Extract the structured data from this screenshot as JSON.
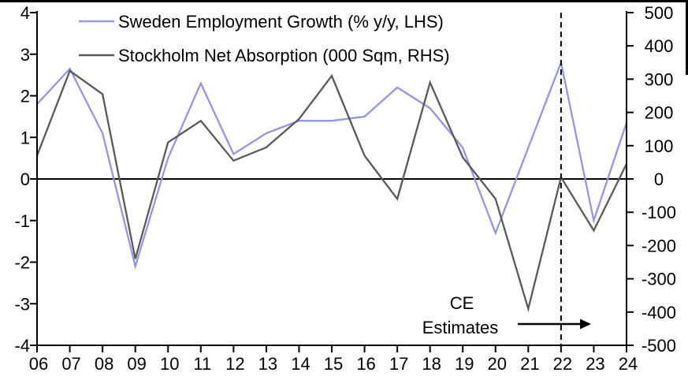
{
  "chart_data": {
    "type": "line",
    "title": "",
    "categories": [
      "06",
      "07",
      "08",
      "09",
      "10",
      "11",
      "12",
      "13",
      "14",
      "15",
      "16",
      "17",
      "18",
      "19",
      "20",
      "21",
      "22",
      "23",
      "24"
    ],
    "series": [
      {
        "name": "Sweden Employment Growth (% y/y, LHS)",
        "axis": "left",
        "color": "#9494e8",
        "values": [
          1.8,
          2.65,
          1.1,
          -2.1,
          0.5,
          2.3,
          0.6,
          1.1,
          1.4,
          1.4,
          1.5,
          2.2,
          1.7,
          0.75,
          -1.3,
          0.75,
          2.8,
          -1.0,
          1.35
        ]
      },
      {
        "name": "Stockholm Net Absorption (000 Sqm, RHS)",
        "axis": "right",
        "color": "#595959",
        "values": [
          70,
          325,
          255,
          -240,
          110,
          175,
          55,
          95,
          180,
          310,
          70,
          -60,
          290,
          65,
          -60,
          -390,
          5,
          -155,
          45
        ]
      }
    ],
    "left_axis": {
      "min": -4,
      "max": 4,
      "ticks": [
        4,
        3,
        2,
        1,
        0,
        -1,
        -2,
        -3,
        -4
      ]
    },
    "right_axis": {
      "min": -500,
      "max": 500,
      "ticks": [
        500,
        400,
        300,
        200,
        100,
        0,
        -100,
        -200,
        -300,
        -400,
        -500
      ]
    },
    "x_axis": {
      "first_label": "06",
      "last_label": "24"
    },
    "zero_line": true,
    "grid": false,
    "legend_position": "top-left",
    "annotation": {
      "line1": "CE",
      "line2": "Estimates",
      "dashed_line_category": "22"
    },
    "colors": {
      "axis": "#000000",
      "employment_line": "#9494e8",
      "absorption_line": "#595959"
    }
  }
}
